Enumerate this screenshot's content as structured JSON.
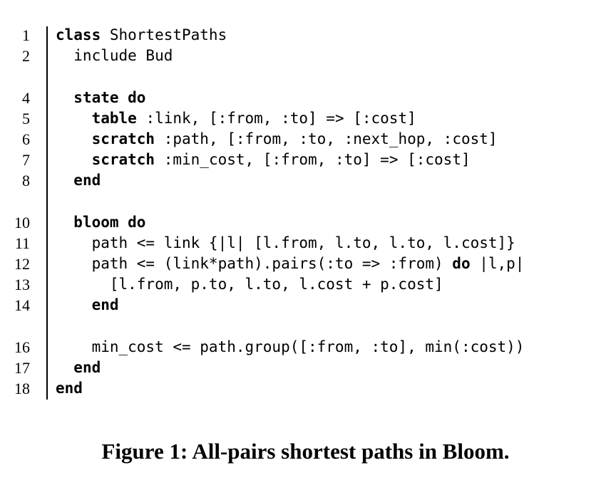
{
  "listing": {
    "lines": [
      {
        "no": "1",
        "tokens": [
          {
            "t": "class",
            "b": true
          },
          {
            "t": " ShortestPaths",
            "b": false
          }
        ]
      },
      {
        "no": "2",
        "tokens": [
          {
            "t": "  include Bud",
            "b": false
          }
        ]
      },
      {
        "no": "",
        "tokens": []
      },
      {
        "no": "4",
        "tokens": [
          {
            "t": "  ",
            "b": false
          },
          {
            "t": "state do",
            "b": true
          }
        ]
      },
      {
        "no": "5",
        "tokens": [
          {
            "t": "    ",
            "b": false
          },
          {
            "t": "table",
            "b": true
          },
          {
            "t": " :link, [:from, :to] => [:cost]",
            "b": false
          }
        ]
      },
      {
        "no": "6",
        "tokens": [
          {
            "t": "    ",
            "b": false
          },
          {
            "t": "scratch",
            "b": true
          },
          {
            "t": " :path, [:from, :to, :next_hop, :cost]",
            "b": false
          }
        ]
      },
      {
        "no": "7",
        "tokens": [
          {
            "t": "    ",
            "b": false
          },
          {
            "t": "scratch",
            "b": true
          },
          {
            "t": " :min_cost, [:from, :to] => [:cost]",
            "b": false
          }
        ]
      },
      {
        "no": "8",
        "tokens": [
          {
            "t": "  ",
            "b": false
          },
          {
            "t": "end",
            "b": true
          }
        ]
      },
      {
        "no": "",
        "tokens": []
      },
      {
        "no": "10",
        "tokens": [
          {
            "t": "  ",
            "b": false
          },
          {
            "t": "bloom do",
            "b": true
          }
        ]
      },
      {
        "no": "11",
        "tokens": [
          {
            "t": "    path <= link {|l| [l.from, l.to, l.to, l.cost]}",
            "b": false
          }
        ]
      },
      {
        "no": "12",
        "tokens": [
          {
            "t": "    path <= (link*path).pairs(:to => :from) ",
            "b": false
          },
          {
            "t": "do",
            "b": true
          },
          {
            "t": " |l,p|",
            "b": false
          }
        ]
      },
      {
        "no": "13",
        "tokens": [
          {
            "t": "      [l.from, p.to, l.to, l.cost + p.cost]",
            "b": false
          }
        ]
      },
      {
        "no": "14",
        "tokens": [
          {
            "t": "    ",
            "b": false
          },
          {
            "t": "end",
            "b": true
          }
        ]
      },
      {
        "no": "",
        "tokens": []
      },
      {
        "no": "16",
        "tokens": [
          {
            "t": "    min_cost <= path.group([:from, :to], min(:cost))",
            "b": false
          }
        ]
      },
      {
        "no": "17",
        "tokens": [
          {
            "t": "  ",
            "b": false
          },
          {
            "t": "end",
            "b": true
          }
        ]
      },
      {
        "no": "18",
        "tokens": [
          {
            "t": "end",
            "b": true
          }
        ]
      }
    ]
  },
  "caption": "Figure 1: All-pairs shortest paths in Bloom."
}
